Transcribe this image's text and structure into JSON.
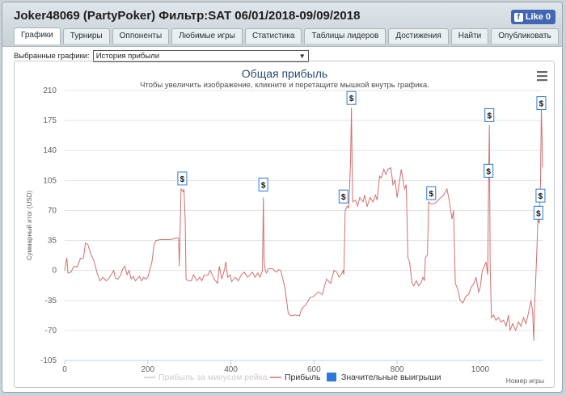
{
  "window_title": "Joker48069 (PartyPoker) Фильтр:SAT 06/01/2018-09/09/2018",
  "facebook": {
    "label": "Like 0",
    "icon": "facebook-icon"
  },
  "tabs": [
    {
      "label": "Графики",
      "active": true
    },
    {
      "label": "Турниры"
    },
    {
      "label": "Оппоненты"
    },
    {
      "label": "Любимые игры"
    },
    {
      "label": "Статистика"
    },
    {
      "label": "Таблицы лидеров"
    },
    {
      "label": "Достижения"
    },
    {
      "label": "Найти"
    },
    {
      "label": "Опубликовать"
    }
  ],
  "filter": {
    "label": "Выбранные графики:",
    "selected": "История прибыли"
  },
  "menu_icon": "hamburger-menu-icon",
  "colors": {
    "profit_line": "#d07070",
    "rake_line": "#cccccc",
    "big_win": "#2b7bd6"
  },
  "chart_data": {
    "type": "line",
    "title": "Общая прибыль",
    "subtitle": "Чтобы увеличить изображение, кликните и перетащите мышкой внутрь графика.",
    "ylabel": "Суммарный итог (USD)",
    "xlabel": "Номер игры",
    "ylim": [
      -105,
      210
    ],
    "xlim": [
      0,
      1150
    ],
    "yticks": [
      210,
      175,
      140,
      105,
      70,
      35,
      0,
      -35,
      -70,
      -105
    ],
    "xticks": [
      0,
      200,
      400,
      600,
      800,
      1000
    ],
    "grid": true,
    "legend_position": "bottom",
    "legend": [
      "Прибыль за минусом рейка",
      "Прибыль",
      "Значительные выигрыши"
    ],
    "series": [
      {
        "name": "Прибыль",
        "points": [
          [
            0,
            0
          ],
          [
            5,
            15
          ],
          [
            8,
            -3
          ],
          [
            15,
            -2
          ],
          [
            22,
            5
          ],
          [
            30,
            4
          ],
          [
            38,
            14
          ],
          [
            45,
            14
          ],
          [
            50,
            32
          ],
          [
            56,
            30
          ],
          [
            62,
            20
          ],
          [
            70,
            12
          ],
          [
            78,
            -3
          ],
          [
            85,
            -12
          ],
          [
            92,
            -8
          ],
          [
            100,
            -12
          ],
          [
            105,
            -10
          ],
          [
            112,
            -5
          ],
          [
            118,
            0
          ],
          [
            122,
            -9
          ],
          [
            128,
            -10
          ],
          [
            135,
            -5
          ],
          [
            140,
            2
          ],
          [
            145,
            5
          ],
          [
            150,
            -5
          ],
          [
            155,
            0
          ],
          [
            160,
            -10
          ],
          [
            165,
            -7
          ],
          [
            170,
            -12
          ],
          [
            180,
            -7
          ],
          [
            185,
            -12
          ],
          [
            190,
            -8
          ],
          [
            195,
            -10
          ],
          [
            200,
            -8
          ],
          [
            210,
            10
          ],
          [
            215,
            30
          ],
          [
            220,
            35
          ],
          [
            230,
            36
          ],
          [
            240,
            36
          ],
          [
            255,
            36
          ],
          [
            268,
            38
          ],
          [
            274,
            38
          ],
          [
            276,
            5
          ],
          [
            280,
            95
          ],
          [
            285,
            92
          ],
          [
            287,
            95
          ],
          [
            290,
            60
          ],
          [
            292,
            -10
          ],
          [
            298,
            -12
          ],
          [
            305,
            -12
          ],
          [
            310,
            -5
          ],
          [
            318,
            -12
          ],
          [
            325,
            -8
          ],
          [
            330,
            -12
          ],
          [
            335,
            -6
          ],
          [
            345,
            -5
          ],
          [
            350,
            0
          ],
          [
            360,
            -10
          ],
          [
            368,
            -15
          ],
          [
            372,
            5
          ],
          [
            378,
            -10
          ],
          [
            384,
            0
          ],
          [
            388,
            10
          ],
          [
            392,
            -8
          ],
          [
            398,
            -5
          ],
          [
            402,
            -13
          ],
          [
            410,
            -8
          ],
          [
            418,
            -12
          ],
          [
            425,
            -5
          ],
          [
            432,
            -2
          ],
          [
            440,
            -8
          ],
          [
            446,
            -5
          ],
          [
            452,
            -2
          ],
          [
            458,
            -8
          ],
          [
            465,
            -3
          ],
          [
            470,
            -8
          ],
          [
            476,
            0
          ],
          [
            478,
            85
          ],
          [
            480,
            10
          ],
          [
            483,
            0
          ],
          [
            486,
            -3
          ],
          [
            490,
            2
          ],
          [
            500,
            2
          ],
          [
            505,
            0
          ],
          [
            510,
            -2
          ],
          [
            515,
            1
          ],
          [
            520,
            0
          ],
          [
            530,
            -20
          ],
          [
            538,
            -50
          ],
          [
            545,
            -53
          ],
          [
            555,
            -52
          ],
          [
            565,
            -53
          ],
          [
            570,
            -45
          ],
          [
            580,
            -40
          ],
          [
            590,
            -32
          ],
          [
            600,
            -30
          ],
          [
            610,
            -25
          ],
          [
            620,
            -28
          ],
          [
            630,
            -10
          ],
          [
            640,
            -15
          ],
          [
            648,
            0
          ],
          [
            655,
            -2
          ],
          [
            660,
            -8
          ],
          [
            665,
            -5
          ],
          [
            670,
            0
          ],
          [
            672,
            -5
          ],
          [
            675,
            70
          ],
          [
            680,
            75
          ],
          [
            684,
            73
          ],
          [
            688,
            130
          ],
          [
            690,
            190
          ],
          [
            693,
            80
          ],
          [
            700,
            82
          ],
          [
            705,
            75
          ],
          [
            710,
            85
          ],
          [
            718,
            80
          ],
          [
            722,
            88
          ],
          [
            728,
            75
          ],
          [
            735,
            85
          ],
          [
            742,
            80
          ],
          [
            748,
            88
          ],
          [
            752,
            82
          ],
          [
            758,
            110
          ],
          [
            762,
            108
          ],
          [
            768,
            118
          ],
          [
            773,
            112
          ],
          [
            778,
            118
          ],
          [
            785,
            120
          ],
          [
            790,
            100
          ],
          [
            795,
            105
          ],
          [
            800,
            85
          ],
          [
            810,
            118
          ],
          [
            818,
            95
          ],
          [
            822,
            100
          ],
          [
            826,
            15
          ],
          [
            830,
            10
          ],
          [
            836,
            -15
          ],
          [
            840,
            -18
          ],
          [
            846,
            -12
          ],
          [
            852,
            -18
          ],
          [
            858,
            -14
          ],
          [
            862,
            -8
          ],
          [
            866,
            -12
          ],
          [
            868,
            15
          ],
          [
            873,
            18
          ],
          [
            876,
            80
          ],
          [
            880,
            78
          ],
          [
            888,
            78
          ],
          [
            895,
            80
          ],
          [
            905,
            85
          ],
          [
            912,
            88
          ],
          [
            920,
            95
          ],
          [
            926,
            80
          ],
          [
            932,
            60
          ],
          [
            936,
            70
          ],
          [
            940,
            -15
          ],
          [
            946,
            -22
          ],
          [
            952,
            -35
          ],
          [
            958,
            -38
          ],
          [
            966,
            -30
          ],
          [
            972,
            -28
          ],
          [
            978,
            -20
          ],
          [
            985,
            -15
          ],
          [
            990,
            -8
          ],
          [
            996,
            -25
          ],
          [
            1000,
            -20
          ],
          [
            1005,
            0
          ],
          [
            1010,
            5
          ],
          [
            1014,
            10
          ],
          [
            1018,
            -5
          ],
          [
            1020,
            95
          ],
          [
            1022,
            170
          ],
          [
            1024,
            5
          ],
          [
            1027,
            -55
          ],
          [
            1032,
            -52
          ],
          [
            1038,
            -58
          ],
          [
            1044,
            -55
          ],
          [
            1050,
            -60
          ],
          [
            1056,
            -58
          ],
          [
            1062,
            -65
          ],
          [
            1068,
            -52
          ],
          [
            1072,
            -70
          ],
          [
            1078,
            -62
          ],
          [
            1085,
            -70
          ],
          [
            1092,
            -60
          ],
          [
            1098,
            -65
          ],
          [
            1104,
            -55
          ],
          [
            1110,
            -62
          ],
          [
            1116,
            -50
          ],
          [
            1122,
            -35
          ],
          [
            1126,
            -48
          ],
          [
            1129,
            -82
          ],
          [
            1131,
            -40
          ],
          [
            1134,
            -5
          ],
          [
            1136,
            20
          ],
          [
            1139,
            60
          ],
          [
            1142,
            55
          ],
          [
            1145,
            100
          ],
          [
            1147,
            190
          ],
          [
            1149,
            150
          ],
          [
            1150,
            120
          ]
        ]
      },
      {
        "name": "Прибыль за минусом рейка",
        "points": []
      }
    ],
    "big_wins": [
      [
        283,
        96
      ],
      [
        478,
        89
      ],
      [
        671,
        75
      ],
      [
        690,
        190
      ],
      [
        882,
        79
      ],
      [
        1020,
        105
      ],
      [
        1022,
        170
      ],
      [
        1140,
        56
      ],
      [
        1145,
        76
      ],
      [
        1147,
        184
      ]
    ],
    "big_win_marker": "$"
  }
}
